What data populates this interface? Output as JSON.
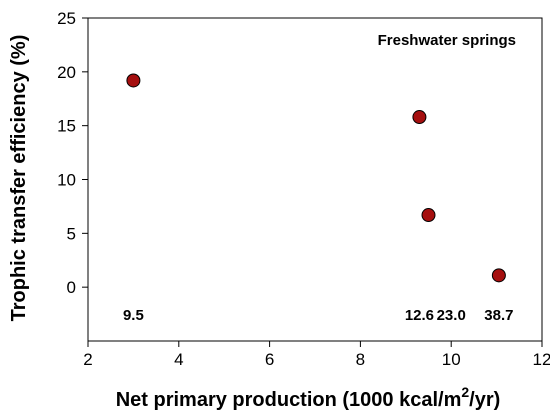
{
  "chart_data": {
    "type": "scatter",
    "title": "",
    "annotation": "Freshwater springs",
    "xlabel": "Net primary production (1000 kcal/m",
    "xlabel_superscript": "2",
    "xlabel_suffix": "/yr)",
    "ylabel": "Trophic transfer efficiency (%)",
    "xlim": [
      2,
      12
    ],
    "ylim": [
      -5,
      25
    ],
    "xticks": [
      2,
      4,
      6,
      8,
      10,
      12
    ],
    "yticks": [
      0,
      5,
      10,
      15,
      20,
      25
    ],
    "grid": false,
    "points": [
      {
        "x": 3.0,
        "y": 19.2
      },
      {
        "x": 9.3,
        "y": 15.8
      },
      {
        "x": 9.5,
        "y": 6.7
      },
      {
        "x": 11.05,
        "y": 1.1
      }
    ],
    "point_labels": [
      {
        "text": "9.5",
        "x": 3.0,
        "y": -2.5
      },
      {
        "text": "12.6",
        "x": 9.3,
        "y": -2.5
      },
      {
        "text": "23.0",
        "x": 10.0,
        "y": -2.5
      },
      {
        "text": "38.7",
        "x": 11.05,
        "y": -2.5
      }
    ],
    "marker_color": "#a50f0f"
  }
}
